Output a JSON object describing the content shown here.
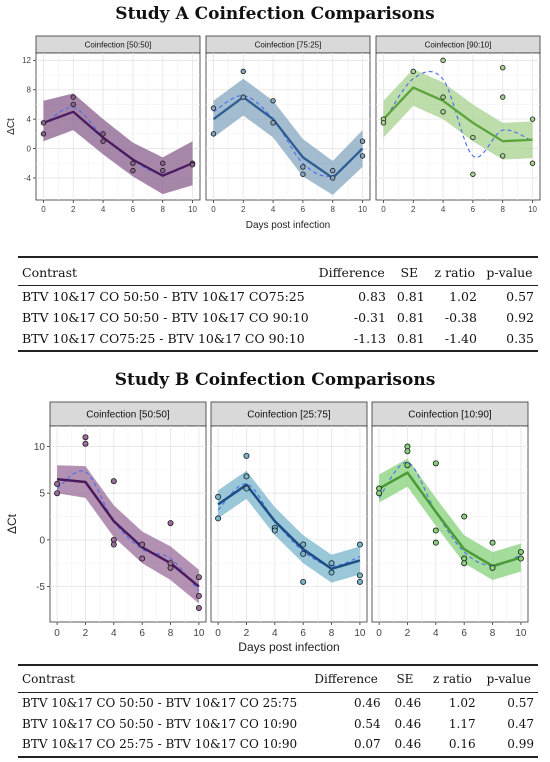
{
  "figure": {
    "title_a": "Study A Coinfection Comparisons",
    "title_b": "Study B Coinfection Comparisons"
  },
  "chart_data": [
    {
      "type": "line",
      "study": "A",
      "ylabel": "ΔCt",
      "xlabel": "Days post infection",
      "xticks": [
        0,
        2,
        4,
        6,
        8,
        10
      ],
      "yticks": [
        -4,
        0,
        4,
        8,
        12
      ],
      "ylim": [
        -7,
        13
      ],
      "xlim": [
        -0.5,
        10.5
      ],
      "grid": true,
      "panels": [
        {
          "title": "Coinfection [50:50]",
          "color": "#4a1a5c",
          "fill": "#8a5f8c",
          "x": [
            0,
            2,
            4,
            6,
            8,
            10
          ],
          "fit": [
            3.5,
            5.0,
            1.5,
            -1.5,
            -3.7,
            -2.0
          ],
          "lower": [
            1.0,
            2.5,
            -0.8,
            -3.8,
            -6.2,
            -5.0
          ],
          "upper": [
            6.5,
            7.5,
            4.0,
            0.8,
            -1.2,
            1.0
          ],
          "smooth": [
            3.2,
            5.6,
            1.6,
            -1.6,
            -3.5,
            -2.0
          ],
          "points": [
            [
              0,
              3.5
            ],
            [
              0,
              2
            ],
            [
              2,
              7
            ],
            [
              2,
              6
            ],
            [
              4,
              2
            ],
            [
              4,
              1
            ],
            [
              6,
              -2
            ],
            [
              6,
              -3
            ],
            [
              8,
              -2
            ],
            [
              8,
              -3
            ],
            [
              10,
              -2
            ],
            [
              10,
              -2.2
            ]
          ]
        },
        {
          "title": "Coinfection [75:25]",
          "color": "#2e5f94",
          "fill": "#84a5c0",
          "x": [
            0,
            2,
            4,
            6,
            8,
            10
          ],
          "fit": [
            4.0,
            7.0,
            4.0,
            -1.2,
            -4.0,
            0.0
          ],
          "lower": [
            1.5,
            4.5,
            1.5,
            -3.8,
            -6.3,
            -2.5
          ],
          "upper": [
            6.5,
            9.5,
            6.5,
            1.3,
            -1.7,
            2.5
          ],
          "smooth": [
            5.0,
            7.2,
            4.0,
            -2.0,
            -3.7,
            0.2
          ],
          "points": [
            [
              0,
              5.5
            ],
            [
              0,
              2
            ],
            [
              2,
              10.5
            ],
            [
              2,
              7
            ],
            [
              4,
              6.5
            ],
            [
              4,
              3.5
            ],
            [
              6,
              -2.5
            ],
            [
              6,
              -3.5
            ],
            [
              8,
              -3
            ],
            [
              8,
              -4
            ],
            [
              10,
              1
            ],
            [
              10,
              -1
            ]
          ]
        },
        {
          "title": "Coinfection [90:10]",
          "color": "#5aa43a",
          "fill": "#a7d28f",
          "x": [
            0,
            2,
            4,
            6,
            8,
            10
          ],
          "fit": [
            4.0,
            8.3,
            6.5,
            3.5,
            1.0,
            1.2
          ],
          "lower": [
            1.5,
            5.8,
            4.0,
            1.0,
            -1.5,
            -1.3
          ],
          "upper": [
            6.5,
            10.8,
            9.0,
            6.0,
            3.5,
            3.7
          ],
          "smooth": [
            3.6,
            9.5,
            9.4,
            -1.0,
            2.5,
            1.0
          ],
          "points": [
            [
              0,
              4
            ],
            [
              0,
              3.5
            ],
            [
              2,
              10.5
            ],
            [
              4,
              12
            ],
            [
              4,
              7
            ],
            [
              4,
              5
            ],
            [
              6,
              1.5
            ],
            [
              6,
              -3.5
            ],
            [
              8,
              11
            ],
            [
              8,
              7
            ],
            [
              8,
              -1
            ],
            [
              10,
              4
            ],
            [
              10,
              -2
            ]
          ]
        }
      ]
    },
    {
      "type": "line",
      "study": "B",
      "ylabel": "ΔCt",
      "xlabel": "Days post infection",
      "xticks": [
        0,
        2,
        4,
        6,
        8,
        10
      ],
      "yticks": [
        -5,
        0,
        5,
        10
      ],
      "ylim": [
        -8.8,
        12.2
      ],
      "xlim": [
        -0.5,
        10.5
      ],
      "grid": true,
      "panels": [
        {
          "title": "Coinfection [50:50]",
          "color": "#4a1a5c",
          "fill": "#9a6c9a",
          "x": [
            0,
            2,
            4,
            6,
            8,
            10
          ],
          "fit": [
            6.5,
            6.2,
            2.0,
            -0.8,
            -2.5,
            -5.0
          ],
          "lower": [
            5.0,
            4.5,
            0.3,
            -2.5,
            -4.3,
            -6.8
          ],
          "upper": [
            8.0,
            7.9,
            3.7,
            0.9,
            -0.7,
            -3.2
          ],
          "smooth": [
            5.5,
            7.3,
            2.0,
            -1.0,
            -2.0,
            -5.5
          ],
          "points": [
            [
              0,
              6
            ],
            [
              0,
              5
            ],
            [
              2,
              11
            ],
            [
              2,
              10.3
            ],
            [
              4,
              6.3
            ],
            [
              4,
              0
            ],
            [
              4,
              -0.5
            ],
            [
              6,
              -0.5
            ],
            [
              6,
              -2
            ],
            [
              8,
              1.8
            ],
            [
              8,
              -2.5
            ],
            [
              8,
              -3
            ],
            [
              10,
              -4
            ],
            [
              10,
              -6
            ],
            [
              10,
              -7.3
            ]
          ]
        },
        {
          "title": "Coinfection [25:75]",
          "color": "#1d4e84",
          "fill": "#78b5cc",
          "x": [
            0,
            2,
            4,
            6,
            8,
            10
          ],
          "fit": [
            3.8,
            5.9,
            2.0,
            -1.0,
            -3.1,
            -2.2
          ],
          "lower": [
            2.3,
            4.4,
            0.5,
            -2.5,
            -4.6,
            -3.7
          ],
          "upper": [
            5.3,
            7.4,
            3.5,
            0.5,
            -1.6,
            -0.7
          ],
          "smooth": [
            3.2,
            6.0,
            2.0,
            -1.2,
            -2.8,
            -1.8
          ],
          "points": [
            [
              0,
              4.6
            ],
            [
              0,
              2.3
            ],
            [
              2,
              9
            ],
            [
              2,
              6.8
            ],
            [
              2,
              5.5
            ],
            [
              4,
              1.3
            ],
            [
              4,
              1
            ],
            [
              6,
              -0.5
            ],
            [
              6,
              -1.5
            ],
            [
              6,
              -4.5
            ],
            [
              8,
              -2.5
            ],
            [
              8,
              -3.5
            ],
            [
              10,
              -0.5
            ],
            [
              10,
              -3.8
            ],
            [
              10,
              -4.5
            ]
          ]
        },
        {
          "title": "Coinfection [10:90]",
          "color": "#4a9a36",
          "fill": "#85d27a",
          "x": [
            0,
            2,
            4,
            6,
            8,
            10
          ],
          "fit": [
            5.5,
            7.2,
            3.0,
            -1.0,
            -2.8,
            -1.9
          ],
          "lower": [
            4.0,
            5.7,
            1.5,
            -2.5,
            -4.3,
            -3.4
          ],
          "upper": [
            7.0,
            8.7,
            4.5,
            0.5,
            -1.3,
            -0.4
          ],
          "smooth": [
            4.5,
            8.3,
            3.0,
            -1.3,
            -2.8,
            -1.6
          ],
          "points": [
            [
              0,
              5.5
            ],
            [
              0,
              5
            ],
            [
              2,
              10
            ],
            [
              2,
              9.5
            ],
            [
              2,
              8
            ],
            [
              4,
              8.2
            ],
            [
              4,
              1
            ],
            [
              4,
              -0.3
            ],
            [
              6,
              2.5
            ],
            [
              6,
              -2
            ],
            [
              6,
              -2.5
            ],
            [
              8,
              -0.3
            ],
            [
              8,
              -3
            ],
            [
              10,
              -1.3
            ],
            [
              10,
              -2
            ]
          ]
        }
      ]
    }
  ],
  "table_a": {
    "headers": [
      "Contrast",
      "Difference",
      "SE",
      "z ratio",
      "p-value"
    ],
    "rows": [
      [
        "BTV 10&17 CO 50:50 - BTV 10&17 CO75:25",
        "0.83",
        "0.81",
        "1.02",
        "0.57"
      ],
      [
        "BTV 10&17 CO 50:50 - BTV 10&17 CO 90:10",
        "-0.31",
        "0.81",
        "-0.38",
        "0.92"
      ],
      [
        "BTV 10&17 CO75:25 - BTV 10&17 CO 90:10",
        "-1.13",
        "0.81",
        "-1.40",
        "0.35"
      ]
    ]
  },
  "table_b": {
    "headers": [
      "Contrast",
      "Difference",
      "SE",
      "z ratio",
      "p-value"
    ],
    "rows": [
      [
        "BTV 10&17 CO 50:50 - BTV 10&17 CO 25:75",
        "0.46",
        "0.46",
        "1.02",
        "0.57"
      ],
      [
        "BTV 10&17 CO 50:50 - BTV 10&17 CO 10:90",
        "0.54",
        "0.46",
        "1.17",
        "0.47"
      ],
      [
        "BTV 10&17 CO 25:75 - BTV 10&17 CO 10:90",
        "0.07",
        "0.46",
        "0.16",
        "0.99"
      ]
    ]
  }
}
